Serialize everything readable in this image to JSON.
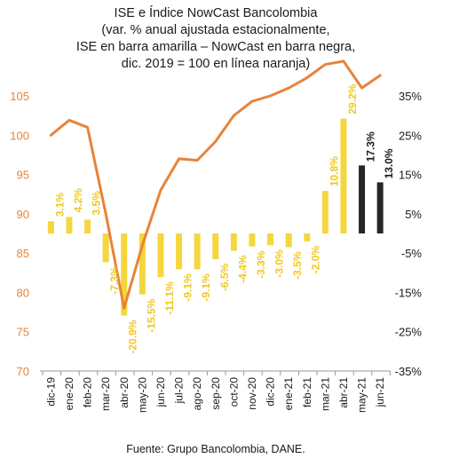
{
  "chart_data": {
    "type": "bar+line",
    "title_lines": [
      "ISE e Índice NowCast Bancolombia",
      "(var. % anual ajustada estacionalmente,",
      "ISE en barra amarilla – NowCast en barra negra,",
      "dic. 2019 = 100 en línea naranja)"
    ],
    "categories": [
      "dic-19",
      "ene-20",
      "feb-20",
      "mar-20",
      "abr-20",
      "may-20",
      "jun-20",
      "jul-20",
      "ago-20",
      "sep-20",
      "oct-20",
      "nov-20",
      "dic-20",
      "ene-21",
      "feb-21",
      "mar-21",
      "abr-21",
      "may-21",
      "jun-21"
    ],
    "bar_series": [
      {
        "label_values": [
          "3.1%",
          "4.2%",
          "3.5%",
          "-7.3%",
          "-20.9%",
          "-15.5%",
          "-11.1%",
          "-9.1%",
          "-9.1%",
          "-6.5%",
          "-4.4%",
          "-3.3%",
          "-3.0%",
          "-3.5%",
          "-2.0%",
          "10.8%",
          "29.2%",
          "",
          ""
        ],
        "values": [
          3.1,
          4.2,
          3.5,
          -7.3,
          -20.9,
          -15.5,
          -11.1,
          -9.1,
          -9.1,
          -6.5,
          -4.4,
          -3.3,
          -3.0,
          -3.5,
          -2.0,
          10.8,
          29.2,
          null,
          null
        ],
        "color": "#f5d63d"
      },
      {
        "label_values": [
          "",
          "",
          "",
          "",
          "",
          "",
          "",
          "",
          "",
          "",
          "",
          "",
          "",
          "",
          "",
          "",
          "",
          "17.3%",
          "13.0%"
        ],
        "values": [
          null,
          null,
          null,
          null,
          null,
          null,
          null,
          null,
          null,
          null,
          null,
          null,
          null,
          null,
          null,
          null,
          null,
          17.3,
          13.0
        ],
        "color": "#262626"
      }
    ],
    "line_series": {
      "values": [
        100,
        101.9,
        101.0,
        90,
        78,
        86,
        93,
        97,
        96.8,
        99.2,
        102.5,
        104.3,
        105,
        106,
        107.3,
        109,
        109.4,
        106,
        107.6
      ],
      "color": "#e8833a"
    },
    "left_axis": {
      "ylim": [
        70,
        105
      ],
      "ticks": [
        "70",
        "75",
        "80",
        "85",
        "90",
        "95",
        "100",
        "105"
      ],
      "tick_values": [
        70,
        75,
        80,
        85,
        90,
        95,
        100,
        105
      ]
    },
    "right_axis": {
      "ylim": [
        -35,
        35
      ],
      "ticks": [
        "35%",
        "25%",
        "15%",
        "5%",
        "-5%",
        "-15%",
        "-25%",
        "-35%"
      ],
      "tick_values": [
        35,
        25,
        15,
        5,
        -5,
        -15,
        -25,
        -35
      ]
    },
    "grid": false,
    "source": "Fuente: Grupo Bancolombia, DANE.",
    "colors": {
      "ise": "#f5d63d",
      "nowcast": "#262626",
      "index_line": "#e8833a"
    }
  }
}
